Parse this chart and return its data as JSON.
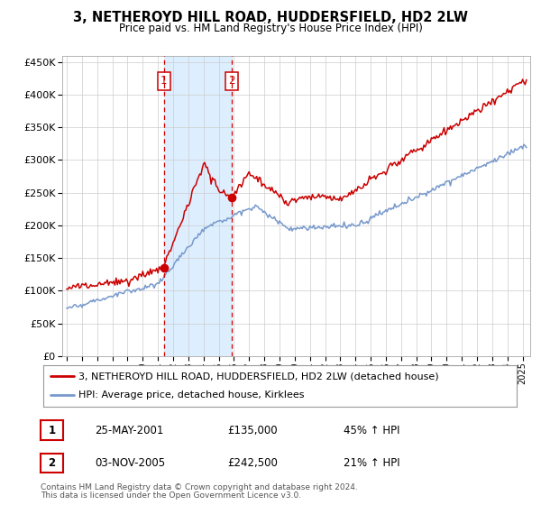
{
  "title": "3, NETHEROYD HILL ROAD, HUDDERSFIELD, HD2 2LW",
  "subtitle": "Price paid vs. HM Land Registry's House Price Index (HPI)",
  "hpi_label": "HPI: Average price, detached house, Kirklees",
  "property_label": "3, NETHEROYD HILL ROAD, HUDDERSFIELD, HD2 2LW (detached house)",
  "red_color": "#cc0000",
  "blue_color": "#7799cc",
  "shade_color": "#ddeeff",
  "purchase1": {
    "date_num": 2001.39,
    "price": 135000,
    "label": "1",
    "date_str": "25-MAY-2001",
    "pct": "45% ↑ HPI"
  },
  "purchase2": {
    "date_num": 2005.84,
    "price": 242500,
    "label": "2",
    "date_str": "03-NOV-2005",
    "pct": "21% ↑ HPI"
  },
  "footnote1": "Contains HM Land Registry data © Crown copyright and database right 2024.",
  "footnote2": "This data is licensed under the Open Government Licence v3.0.",
  "ylim": [
    0,
    460000
  ],
  "yticks": [
    0,
    50000,
    100000,
    150000,
    200000,
    250000,
    300000,
    350000,
    400000,
    450000
  ],
  "xlim_start": 1994.7,
  "xlim_end": 2025.5
}
